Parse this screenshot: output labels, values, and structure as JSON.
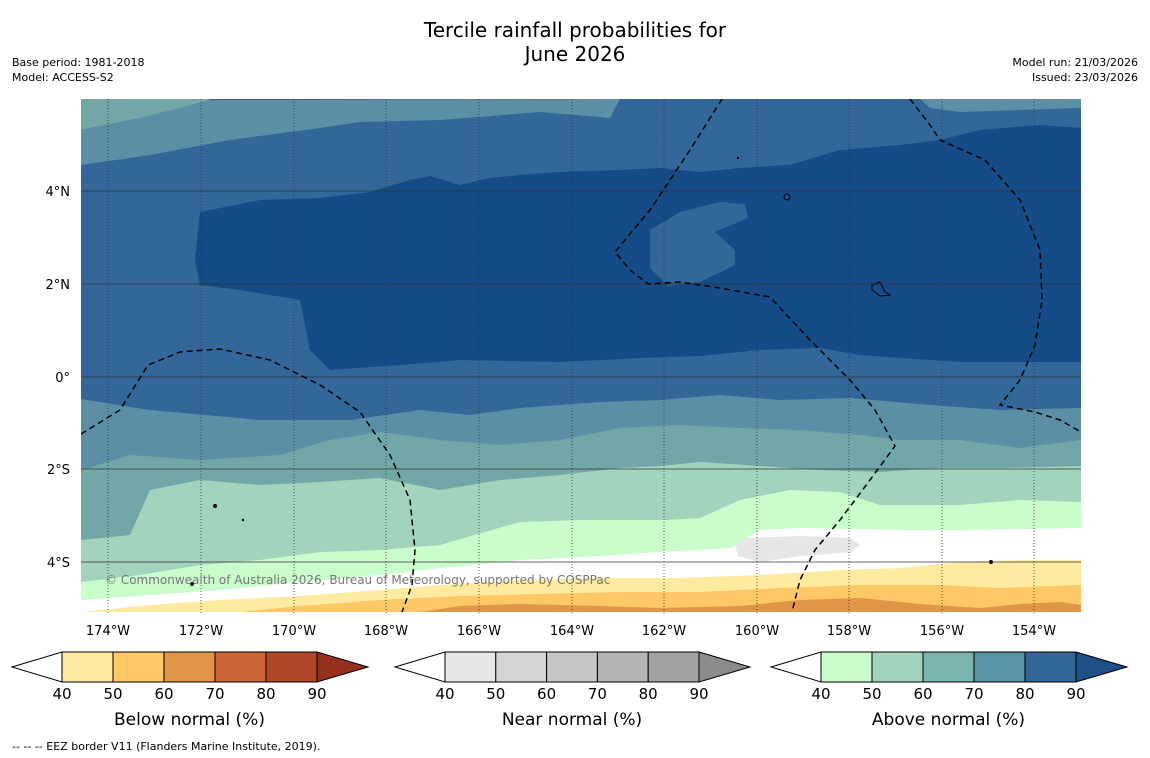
{
  "title": {
    "line1": "Tercile rainfall probabilities for",
    "line2": "June 2026"
  },
  "meta": {
    "base_period": "Base period: 1981-2018",
    "model": "Model: ACCESS-S2",
    "model_run": "Model run: 21/03/2026",
    "issued": "Issued: 23/03/2026"
  },
  "map": {
    "lon_labels": [
      "174°W",
      "172°W",
      "170°W",
      "168°W",
      "166°W",
      "164°W",
      "162°W",
      "160°W",
      "158°W",
      "156°W",
      "154°W"
    ],
    "lat_labels": [
      "4°N",
      "2°N",
      "0°",
      "2°S",
      "4°S"
    ],
    "copyright": "© Commonwealth of Australia 2026, Bureau of Meteorology, supported by COSPPac"
  },
  "colorbars": [
    {
      "label": "Below normal (%)",
      "ticks": [
        "40",
        "50",
        "60",
        "70",
        "80",
        "90"
      ],
      "colors": [
        "#ffffff",
        "#feeb9f",
        "#fdc865",
        "#e19546",
        "#cc6535",
        "#ae4828",
        "#94301c"
      ]
    },
    {
      "label": "Near normal (%)",
      "ticks": [
        "40",
        "50",
        "60",
        "70",
        "80",
        "90"
      ],
      "colors": [
        "#ffffff",
        "#e6e6e6",
        "#d5d5d5",
        "#c6c6c6",
        "#b3b3b3",
        "#a2a2a2",
        "#8c8c8c"
      ]
    },
    {
      "label": "Above normal (%)",
      "ticks": [
        "40",
        "50",
        "60",
        "70",
        "80",
        "90"
      ],
      "colors": [
        "#ffffff",
        "#c9fdcb",
        "#a2d3bc",
        "#7cb5ad",
        "#5993a5",
        "#336699",
        "#1e4f86"
      ]
    }
  ],
  "footnote": "--  --  -- EEZ border V11 (Flanders Marine Institute, 2019)."
}
